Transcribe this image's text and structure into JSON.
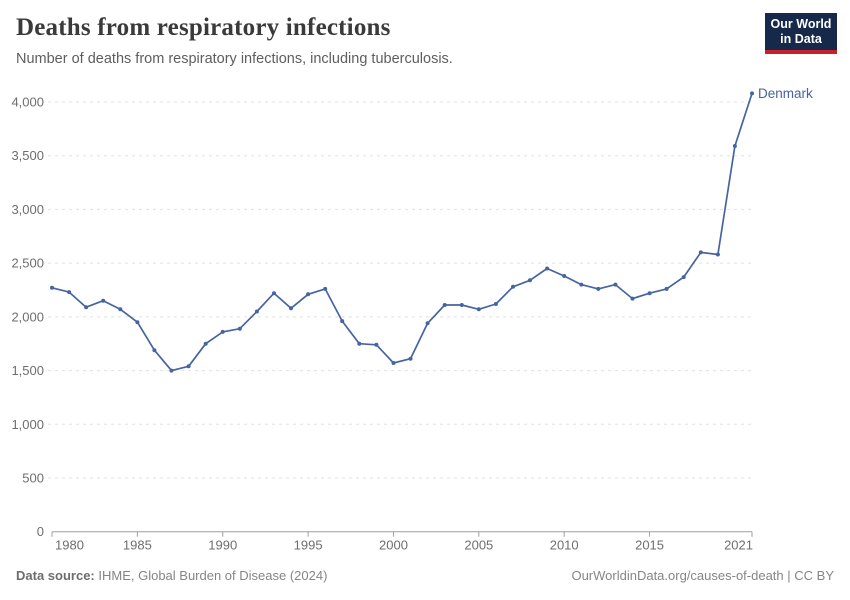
{
  "header": {
    "title": "Deaths from respiratory infections",
    "subtitle": "Number of deaths from respiratory infections, including tuberculosis."
  },
  "logo": {
    "line1": "Our World",
    "line2": "in Data",
    "bg_color": "#16294a",
    "stripe_color": "#c8202d"
  },
  "chart_data": {
    "type": "line",
    "title": "Deaths from respiratory infections",
    "xlabel": "",
    "ylabel": "",
    "ylim": [
      0,
      4000
    ],
    "grid": "dashed-horizontal",
    "legend_position": "end-of-line-label",
    "x": [
      1980,
      1981,
      1982,
      1983,
      1984,
      1985,
      1986,
      1987,
      1988,
      1989,
      1990,
      1991,
      1992,
      1993,
      1994,
      1995,
      1996,
      1997,
      1998,
      1999,
      2000,
      2001,
      2002,
      2003,
      2004,
      2005,
      2006,
      2007,
      2008,
      2009,
      2010,
      2011,
      2012,
      2013,
      2014,
      2015,
      2016,
      2017,
      2018,
      2019,
      2020,
      2021
    ],
    "series": [
      {
        "name": "Denmark",
        "values": [
          2270,
          2230,
          2090,
          2150,
          2070,
          1950,
          1690,
          1500,
          1540,
          1750,
          1860,
          1890,
          2050,
          2220,
          2080,
          2210,
          2260,
          1960,
          1750,
          1740,
          1570,
          1610,
          1940,
          2110,
          2110,
          2070,
          2120,
          2280,
          2340,
          2450,
          2380,
          2300,
          2260,
          2300,
          2170,
          2220,
          2260,
          2370,
          2600,
          2580,
          3590,
          4080
        ]
      }
    ],
    "yticks": [
      0,
      500,
      1000,
      1500,
      2000,
      2500,
      3000,
      3500,
      4000
    ],
    "xticks": [
      1980,
      1985,
      1990,
      1995,
      2000,
      2005,
      2010,
      2015,
      2021
    ],
    "colors": {
      "line": "#4664a0",
      "grid": "#e0e0e0",
      "axis": "#9e9e9e",
      "tick_text": "#6e6e6e"
    }
  },
  "footer": {
    "source_label": "Data source:",
    "source_text": " IHME, Global Burden of Disease (2024)",
    "url": "OurWorldinData.org/causes-of-death",
    "license": " | CC BY"
  }
}
